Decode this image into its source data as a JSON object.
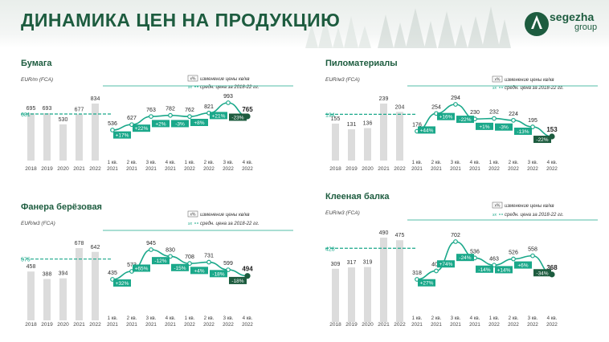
{
  "header": {
    "title": "ДИНАМИКА ЦЕН НА ПРОДУКЦИЮ",
    "logo_name": "segezha",
    "logo_sub": "group"
  },
  "colors": {
    "accent": "#1d5c3f",
    "teal": "#1aa88a",
    "bar": "#dcdcdc"
  },
  "chart_data": [
    {
      "type": "bar+line",
      "title": "Бумага",
      "unit": "EUR/т (FCA)",
      "legend_change_badge": "x%",
      "legend_change": "изменение цены кв/кв",
      "legend_avg_prefix": "xx",
      "legend_avg": "средн. цена за 2018-22 гг.",
      "avg_value": "681",
      "avg": 681,
      "years": [
        "2018",
        "2019",
        "2020",
        "2021",
        "2022"
      ],
      "year_values": [
        695,
        693,
        530,
        677,
        834
      ],
      "quarters": [
        "1 кв.\n2021",
        "2 кв.\n2021",
        "3 кв.\n2021",
        "4 кв.\n2021",
        "1 кв.\n2022",
        "2 кв.\n2022",
        "3 кв.\n2022",
        "4 кв.\n2022"
      ],
      "quarter_values": [
        536,
        627,
        763,
        782,
        762,
        821,
        993,
        765
      ],
      "changes": [
        "+17%",
        "+22%",
        "+2%",
        "-3%",
        "+8%",
        "+21%",
        "-23%"
      ]
    },
    {
      "type": "bar+line",
      "title": "Пиломатериалы",
      "unit": "EUR/м3 (FCA)",
      "legend_change_badge": "x%",
      "legend_change": "изменение цены кв/кв",
      "legend_avg_prefix": "xx",
      "legend_avg": "средн. цена за 2018-22 гг.",
      "avg_value": "194",
      "avg": 194,
      "years": [
        "2018",
        "2019",
        "2020",
        "2021",
        "2022"
      ],
      "year_values": [
        155,
        131,
        136,
        239,
        204
      ],
      "quarters": [
        "1 кв.\n2021",
        "2 кв.\n2021",
        "3 кв.\n2021",
        "4 кв.\n2021",
        "1 кв.\n2022",
        "2 кв.\n2022",
        "3 кв.\n2022",
        "4 кв.\n2022"
      ],
      "quarter_values": [
        176,
        254,
        294,
        230,
        232,
        224,
        195,
        153
      ],
      "changes": [
        "+44%",
        "+16%",
        "-22%",
        "+1%",
        "-3%",
        "-13%",
        "-22%"
      ]
    },
    {
      "type": "bar+line",
      "title": "Фанера берёзовая",
      "unit": "EUR/м3 (FCA)",
      "legend_change_badge": "x%",
      "legend_change": "изменение цены кв/кв",
      "legend_avg_prefix": "xx",
      "legend_avg": "средн. цена за 2018-22 гг.",
      "avg_value": "575",
      "avg": 575,
      "years": [
        "2018",
        "2019",
        "2020",
        "2021",
        "2022"
      ],
      "year_values": [
        458,
        388,
        394,
        678,
        642
      ],
      "quarters": [
        "1 кв.\n2021",
        "2 кв.\n2021",
        "3 кв.\n2021",
        "4 кв.\n2021",
        "1 кв.\n2022",
        "2 кв.\n2022",
        "3 кв.\n2022",
        "4 кв.\n2022"
      ],
      "quarter_values": [
        435,
        573,
        945,
        830,
        708,
        731,
        599,
        494
      ],
      "changes": [
        "+32%",
        "+65%",
        "-12%",
        "-15%",
        "+4%",
        "-18%",
        "-18%"
      ]
    },
    {
      "type": "bar+line",
      "title": "Клееная балка",
      "unit": "EUR/м3 (FCA)",
      "legend_change_badge": "x%",
      "legend_change": "изменение цены кв/кв",
      "legend_avg_prefix": "xx",
      "legend_avg": "средн. цена за 2018-22 гг.",
      "avg_value": "428",
      "avg": 428,
      "years": [
        "2018",
        "2019",
        "2020",
        "2021",
        "2022"
      ],
      "year_values": [
        309,
        317,
        319,
        490,
        475
      ],
      "quarters": [
        "1 кв.\n2021",
        "2 кв.\n2021",
        "3 кв.\n2021",
        "4 кв.\n2021",
        "1 кв.\n2022",
        "2 кв.\n2022",
        "3 кв.\n2022",
        "4 кв.\n2022"
      ],
      "quarter_values": [
        318,
        404,
        702,
        536,
        463,
        526,
        558,
        368
      ],
      "changes": [
        "+27%",
        "+74%",
        "-24%",
        "-14%",
        "+14%",
        "+6%",
        "-34%"
      ]
    }
  ]
}
